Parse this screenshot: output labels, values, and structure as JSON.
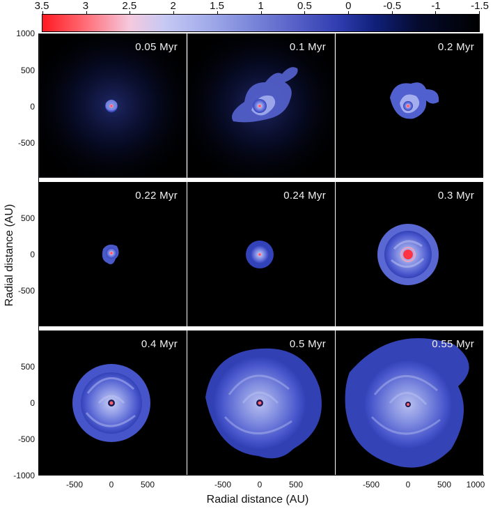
{
  "colorbar": {
    "ticks": [
      "3.5",
      "3",
      "2.5",
      "2",
      "1.5",
      "1",
      "0.5",
      "0",
      "-0.5",
      "-1",
      "-1.5"
    ]
  },
  "axes": {
    "y_title": "Radial distance (AU)",
    "x_title": "Radial distance (AU)",
    "y_ticks_top": [
      "1000",
      "500",
      "0",
      "-500"
    ],
    "y_ticks_mid": [
      "500",
      "0",
      "-500"
    ],
    "y_ticks_bot": [
      "500",
      "0",
      "-500",
      "-1000"
    ],
    "x_ticks_left": [
      "-500",
      "0",
      "500"
    ],
    "x_ticks_mid": [
      "-500",
      "0",
      "500"
    ],
    "x_ticks_right": [
      "-500",
      "0",
      "500",
      "1000"
    ]
  },
  "panels": [
    {
      "time": "0.05 Myr"
    },
    {
      "time": "0.1 Myr"
    },
    {
      "time": "0.2 Myr"
    },
    {
      "time": "0.22 Myr"
    },
    {
      "time": "0.24 Myr"
    },
    {
      "time": "0.3 Myr"
    },
    {
      "time": "0.4 Myr"
    },
    {
      "time": "0.5 Myr"
    },
    {
      "time": "0.55 Myr"
    }
  ],
  "colors": {
    "background": "#000000",
    "disk_dark": "#2a3bb0",
    "disk_light": "#a8b4f0",
    "center": "#ff3344"
  }
}
